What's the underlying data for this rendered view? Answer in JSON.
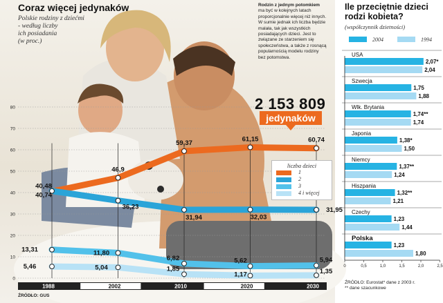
{
  "left": {
    "title": "Coraz więcej jedynaków",
    "subtitle": "Polskie rodziny z dziećmi\n- według liczby\nich posiadania\n(w proc.)",
    "note_bold": "Rodzin z jednym potomkiem",
    "note_text": " ma być w kolejnych latach proporcjonalnie więcej niż innych. W sumie jednak ich liczba będzie malała, tak jak wszystkich posiadających dzieci. Jest to związane ze starzeniem się społeczeństwa, a także z rosnącą popularnością modelu rodziny bez potomstwa.",
    "big_number": "2 153 809",
    "big_label": "jedynaków",
    "source": "ŹRÓDŁO: GUS"
  },
  "right": {
    "title": "Ile przeciętnie dzieci rodzi kobieta?",
    "subtitle": "(współczynnik dzietności)",
    "source": "ŹRÓDŁO: Eurostat* dane z 2003 r.\n** dane szacunkowe"
  },
  "colors": {
    "series1": "#ec6a1f",
    "series2": "#2aa4d8",
    "series3": "#52c1ea",
    "series4": "#b8e2f6",
    "bar2004": "#26b3e3",
    "bar1994": "#a5daf3",
    "axis_dark": "#222222"
  },
  "chart_data": [
    {
      "type": "line",
      "title": "Coraz więcej jedynaków",
      "x": [
        "1988",
        "2002",
        "2010",
        "2020",
        "2030"
      ],
      "ylim": [
        0,
        80
      ],
      "yticks": [
        0,
        10,
        20,
        30,
        40,
        50,
        60,
        70,
        80
      ],
      "legend_title": "liczba dzieci",
      "legend_position": "right",
      "series": [
        {
          "name": "1",
          "values": [
            40.48,
            46.9,
            59.37,
            61.15,
            60.74
          ],
          "labels": [
            "40,48",
            "46,9",
            "59,37",
            "61,15",
            "60,74"
          ]
        },
        {
          "name": "2",
          "values": [
            40.74,
            36.23,
            31.94,
            32.03,
            31.95
          ],
          "labels": [
            "40,74",
            "36,23",
            "31,94",
            "32,03",
            "31,95"
          ]
        },
        {
          "name": "3",
          "values": [
            13.31,
            11.8,
            6.82,
            5.62,
            5.94
          ],
          "labels": [
            "13,31",
            "11,80",
            "6,82",
            "5,62",
            "5,94"
          ]
        },
        {
          "name": "4 i więcej",
          "values": [
            5.46,
            5.04,
            1.85,
            1.17,
            1.35
          ],
          "labels": [
            "5,46",
            "5,04",
            "1,85",
            "1,17",
            "1,35"
          ]
        }
      ]
    },
    {
      "type": "bar",
      "title": "Ile przeciętnie dzieci rodzi kobieta?",
      "subtitle": "(współczynnik dzietności)",
      "orientation": "horizontal",
      "categories": [
        "USA",
        "Szwecja",
        "Wlk. Brytania",
        "Japonia",
        "Niemcy",
        "Hiszpania",
        "Czechy",
        "Polska"
      ],
      "xlim": [
        0,
        2.5
      ],
      "xticks": [
        0,
        0.5,
        1,
        1.5,
        2,
        2.5
      ],
      "xtick_labels": [
        "0",
        "0,5",
        "1,0",
        "1,5",
        "2,0",
        "2,5"
      ],
      "series": [
        {
          "name": "2004",
          "values": [
            2.07,
            1.75,
            1.74,
            1.38,
            1.37,
            1.32,
            1.23,
            1.23
          ],
          "labels": [
            "2,07*",
            "1,75",
            "1,74**",
            "1,38*",
            "1,37**",
            "1,32**",
            "1,23",
            "1,23"
          ]
        },
        {
          "name": "1994",
          "values": [
            2.04,
            1.88,
            1.74,
            1.5,
            1.24,
            1.21,
            1.44,
            1.8
          ],
          "labels": [
            "2,04",
            "1,88",
            "1,74",
            "1,50",
            "1,24",
            "1,21",
            "1,44",
            "1,80"
          ]
        }
      ]
    }
  ]
}
